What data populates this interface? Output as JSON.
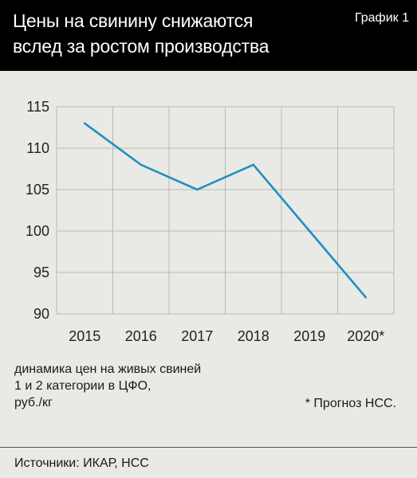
{
  "header": {
    "title_lines": [
      "Цены на свинину снижаются",
      "вслед за ростом производства"
    ],
    "badge": "График 1"
  },
  "chart_data": {
    "type": "line",
    "categories": [
      "2015",
      "2016",
      "2017",
      "2018",
      "2019",
      "2020*"
    ],
    "series": [
      {
        "values": [
          113,
          108,
          105,
          108,
          100,
          92
        ]
      }
    ],
    "ylim": [
      90,
      115
    ],
    "yticks": [
      90,
      95,
      100,
      105,
      110,
      115
    ],
    "grid": true,
    "line_color": "#1f8fc2"
  },
  "caption_lines": [
    "динамика цен на живых свиней",
    "1 и 2 категории в ЦФО,",
    "руб./кг"
  ],
  "footnote": "* Прогноз НСС.",
  "sources": "Источники: ИКАР, НСС"
}
